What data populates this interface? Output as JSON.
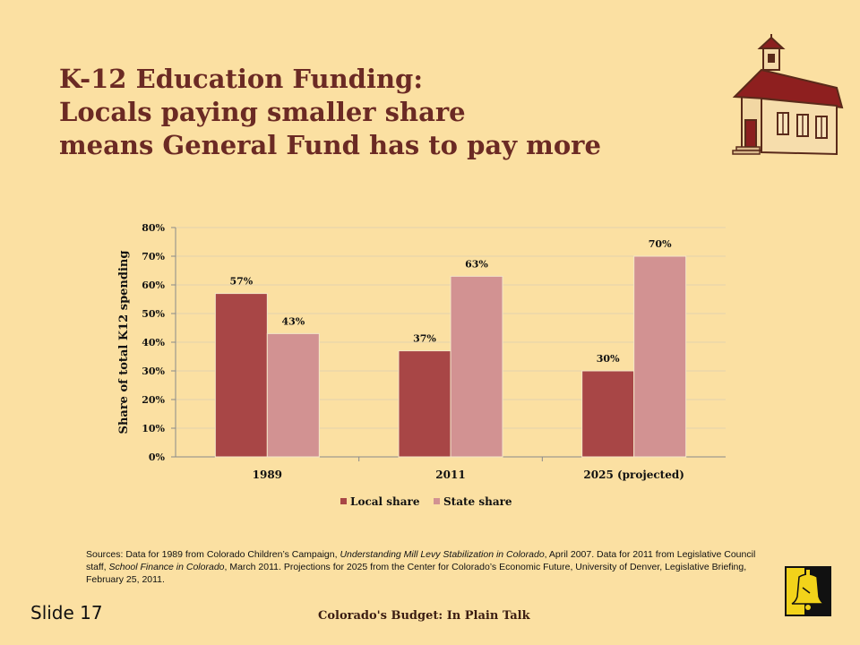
{
  "slide": {
    "title_lines": [
      "K-12 Education Funding:",
      "Locals paying smaller share",
      "means General Fund has to pay more"
    ],
    "sources": {
      "part1": "Sources: Data for 1989 from Colorado Children’s Campaign, ",
      "italic1": "Understanding Mill Levy Stabilization in Colorado",
      "part2": ", April 2007. Data for 2011 from Legislative Council staff, ",
      "italic2": "School Finance in Colorado",
      "part3": ", March 2011. Projections for 2025 from the Center for Colorado’s Economic Future, University of Denver, Legislative Briefing, February 25, 2011."
    },
    "slide_number": "Slide 17",
    "footer": "Colorado's Budget: In Plain Talk"
  },
  "colors": {
    "background": "#fbe0a2",
    "title": "#6b2a24",
    "local": "#a84646",
    "state": "#d29292"
  },
  "icons": [
    "schoolhouse-icon",
    "liberty-bell-logo-icon"
  ],
  "chart_data": {
    "type": "bar",
    "categories": [
      "1989",
      "2011",
      "2025 (projected)"
    ],
    "series": [
      {
        "name": "Local share",
        "values": [
          57,
          37,
          30
        ],
        "labels": [
          "57%",
          "37%",
          "30%"
        ]
      },
      {
        "name": "State share",
        "values": [
          43,
          63,
          70
        ],
        "labels": [
          "43%",
          "63%",
          "70%"
        ]
      }
    ],
    "ylabel": "Share of total K12 spending",
    "ylim": [
      0,
      80
    ],
    "yticks": [
      "0%",
      "10%",
      "20%",
      "30%",
      "40%",
      "50%",
      "60%",
      "70%",
      "80%"
    ],
    "grid": true,
    "legend_position": "bottom"
  }
}
